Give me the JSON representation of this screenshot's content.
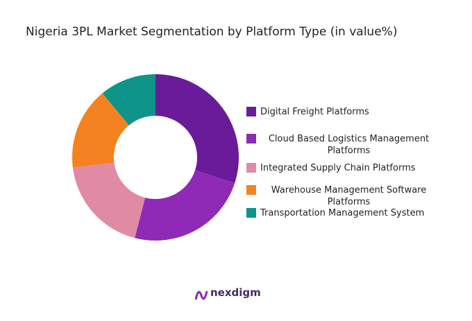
{
  "chart_data": {
    "type": "donut",
    "title": "Nigeria 3PL Market Segmentation by Platform Type (in value%)",
    "categories": [
      "Digital Freight Platforms",
      "Cloud Based Logistics Management Platforms",
      "Integrated Supply Chain Platforms",
      "Warehouse Management Software Platforms",
      "Transportation Management System"
    ],
    "values": [
      30,
      24,
      19,
      16,
      11
    ],
    "colors": [
      "#6a1b9a",
      "#8e2ab5",
      "#e08ba3",
      "#f58220",
      "#0e9488"
    ]
  },
  "logo": "nexdigm"
}
